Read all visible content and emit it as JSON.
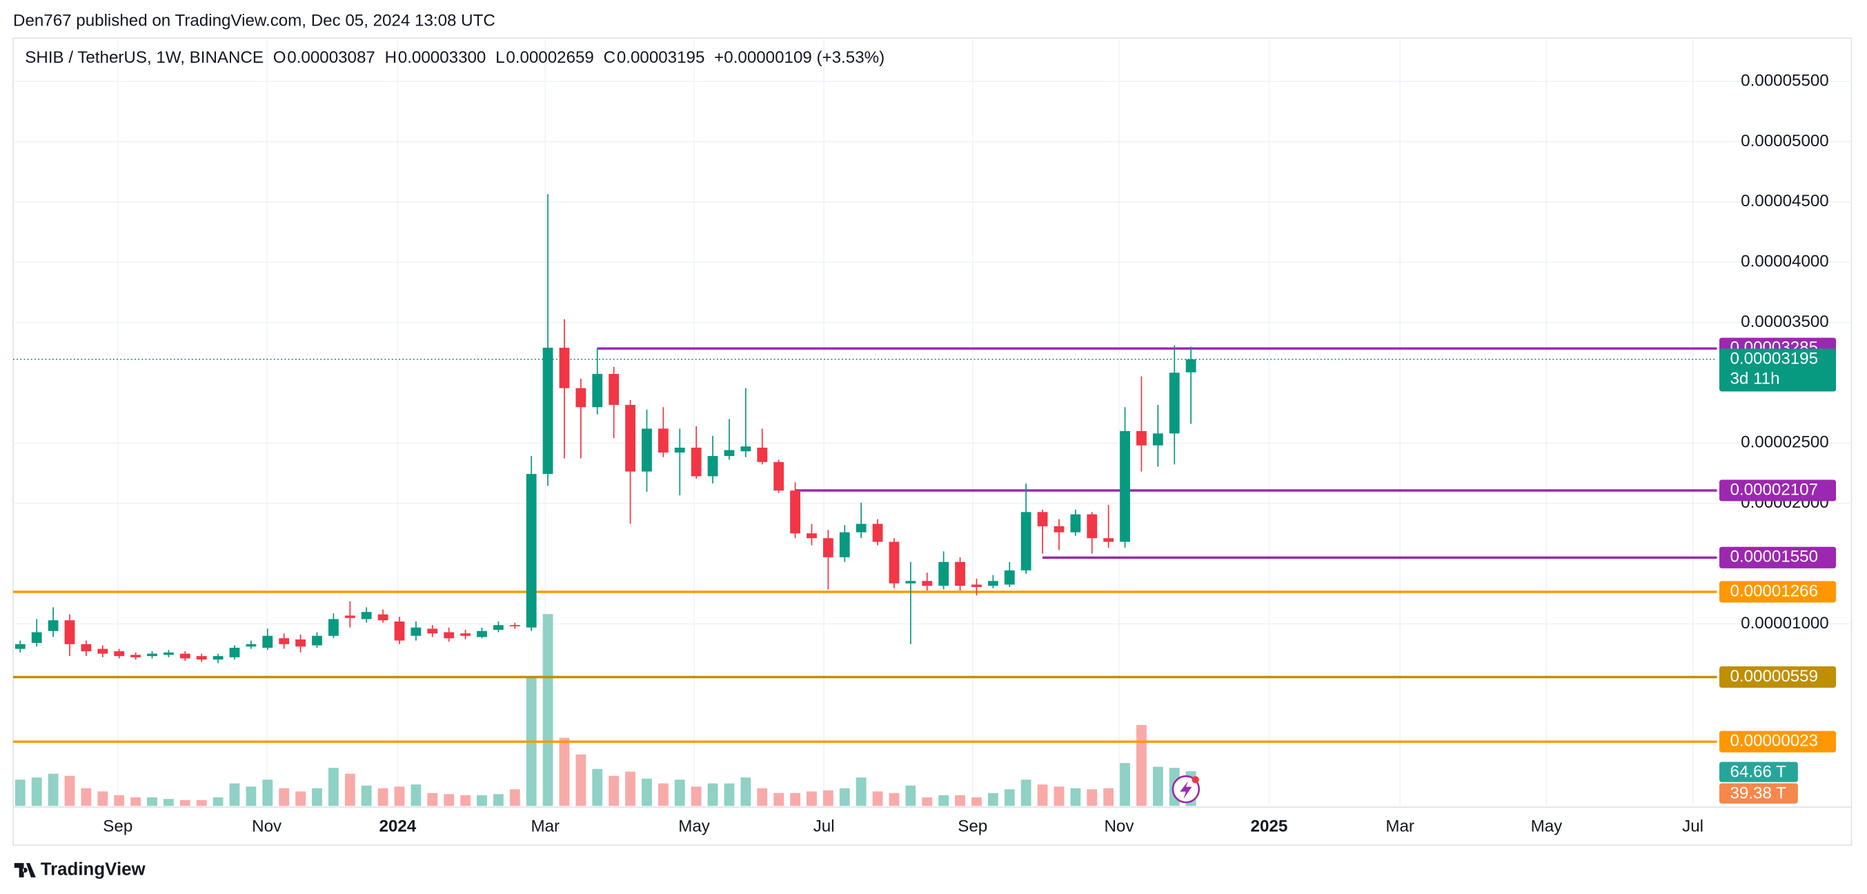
{
  "chart_data": {
    "type": "candlestick",
    "title": "Den767 published on TradingView.com, Dec 05, 2024 13:08 UTC",
    "brand": "TradingView",
    "legend": {
      "o_label": "O",
      "o": "0.00003087",
      "h_label": "H",
      "h": "0.00003300",
      "l_label": "L",
      "l": "0.00002659",
      "c_label": "C",
      "c": "0.00003195",
      "change": "+0.00000109 (+3.53%)"
    },
    "series": [
      {
        "name": "SHIB / TetherUS, 1W, BINANCE",
        "up_color": "#089981",
        "down_color": "#f23645",
        "open": [
          7.93e-06,
          8.42e-06,
          9.41e-06,
          1.03e-05,
          8.32e-06,
          7.93e-06,
          7.73e-06,
          7.43e-06,
          7.33e-06,
          7.43e-06,
          7.53e-06,
          7.33e-06,
          7.04e-06,
          7.23e-06,
          8.12e-06,
          8.02e-06,
          8.81e-06,
          8.71e-06,
          8.22e-06,
          9.01e-06,
          1.069e-05,
          1.04e-05,
          1.079e-05,
          1.02e-05,
          9.01e-06,
          9.6e-06,
          9.31e-06,
          9.21e-06,
          8.91e-06,
          9.51e-06,
          9.9e-06,
          9.7e-06,
          2.244e-05,
          3.291e-05,
          2.956e-05,
          2.798e-05,
          3.074e-05,
          2.817e-05,
          2.264e-05,
          2.62e-05,
          2.422e-05,
          2.462e-05,
          2.225e-05,
          2.393e-05,
          2.432e-05,
          2.462e-05,
          2.343e-05,
          2.106e-05,
          1.751e-05,
          1.711e-05,
          1.553e-05,
          1.76e-05,
          1.83e-05,
          1.681e-05,
          1.336e-05,
          1.356e-05,
          1.316e-05,
          1.514e-05,
          1.326e-05,
          1.316e-05,
          1.326e-05,
          1.444e-05,
          1.928e-05,
          1.81e-05,
          1.76e-05,
          1.909e-05,
          1.711e-05,
          1.681e-05,
          2.6e-05,
          2.481e-05,
          2.58e-05,
          3.087e-05
        ],
        "high": [
          8.62e-06,
          1.04e-05,
          1.138e-05,
          1.079e-05,
          8.62e-06,
          8.22e-06,
          7.93e-06,
          7.63e-06,
          7.73e-06,
          7.83e-06,
          7.73e-06,
          7.53e-06,
          7.53e-06,
          8.22e-06,
          8.62e-06,
          9.6e-06,
          9.21e-06,
          9.11e-06,
          9.31e-06,
          1.089e-05,
          1.188e-05,
          1.138e-05,
          1.119e-05,
          1.059e-05,
          1.02e-05,
          9.9e-06,
          9.7e-06,
          9.51e-06,
          9.7e-06,
          1.02e-05,
          1.01e-05,
          2.393e-05,
          4.565e-05,
          3.528e-05,
          3.035e-05,
          3.291e-05,
          3.133e-05,
          2.857e-05,
          2.778e-05,
          2.798e-05,
          2.62e-05,
          2.64e-05,
          2.56e-05,
          2.699e-05,
          2.956e-05,
          2.62e-05,
          2.363e-05,
          2.175e-05,
          1.83e-05,
          1.78e-05,
          1.82e-05,
          2.007e-05,
          1.869e-05,
          1.711e-05,
          1.514e-05,
          1.425e-05,
          1.602e-05,
          1.553e-05,
          1.375e-05,
          1.405e-05,
          1.514e-05,
          2.165e-05,
          1.948e-05,
          1.869e-05,
          1.948e-05,
          1.928e-05,
          1.988e-05,
          2.798e-05,
          3.054e-05,
          2.817e-05,
          3.311e-05,
          3.3e-05
        ],
        "low": [
          7.63e-06,
          8.12e-06,
          8.91e-06,
          7.33e-06,
          7.33e-06,
          7.23e-06,
          7.14e-06,
          7.04e-06,
          7.14e-06,
          7.23e-06,
          6.94e-06,
          6.84e-06,
          6.74e-06,
          7.04e-06,
          7.93e-06,
          7.83e-06,
          7.93e-06,
          7.63e-06,
          8.02e-06,
          8.81e-06,
          9.7e-06,
          1.01e-05,
          1.01e-05,
          8.32e-06,
          8.62e-06,
          8.91e-06,
          8.52e-06,
          8.72e-06,
          8.81e-06,
          9.31e-06,
          9.6e-06,
          9.41e-06,
          2.146e-05,
          2.373e-05,
          2.373e-05,
          2.738e-05,
          2.541e-05,
          1.83e-05,
          2.096e-05,
          2.383e-05,
          2.067e-05,
          2.205e-05,
          2.165e-05,
          2.363e-05,
          2.383e-05,
          2.323e-05,
          2.086e-05,
          1.711e-05,
          1.652e-05,
          1.286e-05,
          1.514e-05,
          1.711e-05,
          1.652e-05,
          1.296e-05,
          8.32e-06,
          1.277e-05,
          1.286e-05,
          1.277e-05,
          1.237e-05,
          1.296e-05,
          1.306e-05,
          1.415e-05,
          1.583e-05,
          1.612e-05,
          1.731e-05,
          1.583e-05,
          1.632e-05,
          1.632e-05,
          2.264e-05,
          2.304e-05,
          2.323e-05,
          2.659e-05
        ],
        "close": [
          8.32e-06,
          9.31e-06,
          1.03e-05,
          8.32e-06,
          7.73e-06,
          7.53e-06,
          7.33e-06,
          7.23e-06,
          7.53e-06,
          7.63e-06,
          7.14e-06,
          7.04e-06,
          7.33e-06,
          8.02e-06,
          8.32e-06,
          9.01e-06,
          8.32e-06,
          8.12e-06,
          9.01e-06,
          1.04e-05,
          1.049e-05,
          1.099e-05,
          1.03e-05,
          8.62e-06,
          9.7e-06,
          9.21e-06,
          8.81e-06,
          9.01e-06,
          9.41e-06,
          9.9e-06,
          9.8e-06,
          2.244e-05,
          3.291e-05,
          2.956e-05,
          2.798e-05,
          3.074e-05,
          2.817e-05,
          2.264e-05,
          2.62e-05,
          2.422e-05,
          2.462e-05,
          2.225e-05,
          2.393e-05,
          2.442e-05,
          2.472e-05,
          2.343e-05,
          2.106e-05,
          1.751e-05,
          1.711e-05,
          1.553e-05,
          1.76e-05,
          1.83e-05,
          1.681e-05,
          1.336e-05,
          1.356e-05,
          1.316e-05,
          1.514e-05,
          1.316e-05,
          1.306e-05,
          1.356e-05,
          1.444e-05,
          1.928e-05,
          1.81e-05,
          1.76e-05,
          1.909e-05,
          1.711e-05,
          1.681e-05,
          2.6e-05,
          2.481e-05,
          2.58e-05,
          3.084e-05,
          3.195e-05
        ]
      },
      {
        "axis": "y2",
        "up_color": "#8fd1c5",
        "down_color": "#f8aaa8",
        "values": [
          49,
          53,
          60,
          56,
          33,
          27,
          20,
          16,
          16,
          13,
          11,
          11,
          16,
          42,
          36,
          49,
          33,
          27,
          33,
          71,
          60,
          38,
          33,
          36,
          40,
          24,
          22,
          20,
          20,
          22,
          31,
          242,
          358,
          127,
          96,
          69,
          56,
          64,
          51,
          42,
          49,
          36,
          42,
          42,
          53,
          33,
          24,
          24,
          27,
          29,
          33,
          53,
          27,
          24,
          38,
          16,
          20,
          20,
          16,
          24,
          31,
          49,
          40,
          36,
          33,
          31,
          33,
          80,
          151,
          73,
          71,
          64.66
        ]
      }
    ],
    "volume_label": "64.66 T",
    "volume_ma_label": "39.38 T",
    "last_price": {
      "value": 3.195e-05,
      "label": "0.00003195",
      "countdown": "3d 11h",
      "color": "#089981"
    },
    "levels": [
      {
        "value": 3.285e-05,
        "label": "0.00003285",
        "color": "#9c27b0",
        "from": 35
      },
      {
        "value": 2.107e-05,
        "label": "0.00002107",
        "color": "#9c27b0",
        "from": 47
      },
      {
        "value": 1.55e-05,
        "label": "0.00001550",
        "color": "#9c27b0",
        "from": 62
      },
      {
        "value": 1.266e-05,
        "label": "0.00001266",
        "color": "#ff9800",
        "from": null
      },
      {
        "value": 5.59e-06,
        "label": "0.00000559",
        "color": "#bf8f00",
        "from": null
      },
      {
        "value": 2.3e-07,
        "label": "0.00000023",
        "color": "#ff9800",
        "from": null
      }
    ],
    "xlim": [
      -0.43,
      102.9
    ],
    "xticks": [
      {
        "value": 5.92,
        "label": "Sep"
      },
      {
        "value": 14.95,
        "label": "Nov"
      },
      {
        "value": 22.89,
        "label": "2024"
      },
      {
        "value": 31.84,
        "label": "Mar"
      },
      {
        "value": 40.87,
        "label": "May"
      },
      {
        "value": 48.74,
        "label": "Jul"
      },
      {
        "value": 57.76,
        "label": "Sep"
      },
      {
        "value": 66.64,
        "label": "Nov"
      },
      {
        "value": 75.74,
        "label": "2025"
      },
      {
        "value": 83.68,
        "label": "Mar"
      },
      {
        "value": 92.56,
        "label": "May"
      },
      {
        "value": 101.44,
        "label": "Jul"
      }
    ],
    "ylim": [
      -5.1e-06,
      5.86e-05
    ],
    "yticks": [
      {
        "value": 1e-05,
        "label": "0.00001000"
      },
      {
        "value": 2e-05,
        "label": "0.00002000"
      },
      {
        "value": 2.5e-05,
        "label": "0.00002500"
      },
      {
        "value": 3.5e-05,
        "label": "0.00003500"
      },
      {
        "value": 4e-05,
        "label": "0.00004000"
      },
      {
        "value": 4.5e-05,
        "label": "0.00004500"
      },
      {
        "value": 5e-05,
        "label": "0.00005000"
      },
      {
        "value": 5.5e-05,
        "label": "0.00005500"
      }
    ],
    "y2lim": [
      0,
      1433
    ],
    "grid": true
  }
}
